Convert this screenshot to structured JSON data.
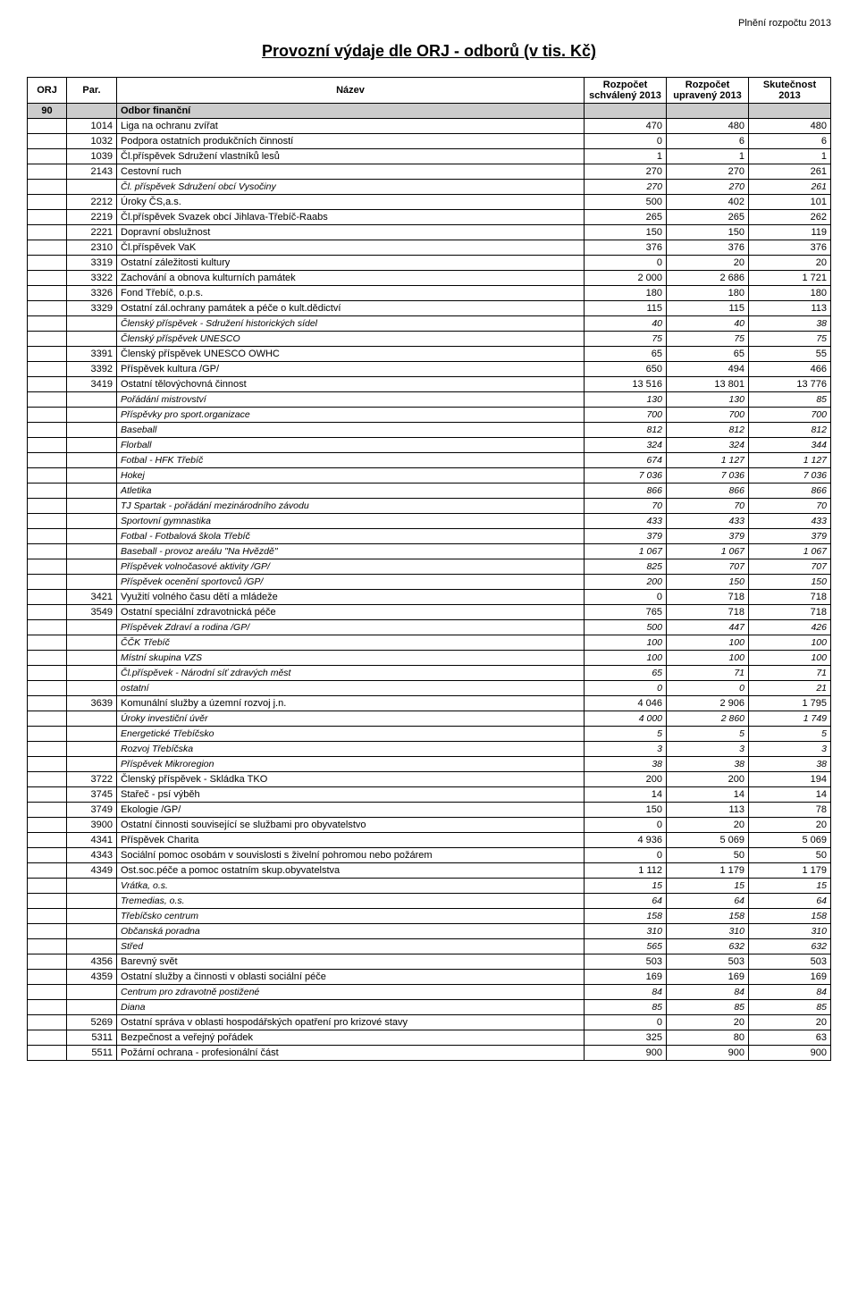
{
  "page_header": "Plnění rozpočtu 2013",
  "title": "Provozní výdaje dle ORJ - odborů (v tis. Kč)",
  "columns": {
    "orj": "ORJ",
    "par": "Par.",
    "name": "Název",
    "c1": "Rozpočet schválený 2013",
    "c2": "Rozpočet upravený 2013",
    "c3": "Skutečnost 2013"
  },
  "rows": [
    {
      "type": "section",
      "orj": "90",
      "name": "Odbor finanční"
    },
    {
      "par": "1014",
      "name": "Liga na ochranu zvířat",
      "v": [
        "470",
        "480",
        "480"
      ]
    },
    {
      "par": "1032",
      "name": "Podpora ostatních produkčních činností",
      "v": [
        "0",
        "6",
        "6"
      ]
    },
    {
      "par": "1039",
      "name": "Čl.příspěvek Sdružení vlastníků lesů",
      "v": [
        "1",
        "1",
        "1"
      ]
    },
    {
      "par": "2143",
      "name": "Cestovní ruch",
      "v": [
        "270",
        "270",
        "261"
      ]
    },
    {
      "type": "italic",
      "name": "Čl. příspěvek Sdružení obcí Vysočiny",
      "v": [
        "270",
        "270",
        "261"
      ]
    },
    {
      "par": "2212",
      "name": "Úroky ČS,a.s.",
      "v": [
        "500",
        "402",
        "101"
      ]
    },
    {
      "par": "2219",
      "name": "Čl.příspěvek Svazek obcí Jihlava-Třebíč-Raabs",
      "v": [
        "265",
        "265",
        "262"
      ]
    },
    {
      "par": "2221",
      "name": "Dopravní obslužnost",
      "v": [
        "150",
        "150",
        "119"
      ]
    },
    {
      "par": "2310",
      "name": "Čl.příspěvek VaK",
      "v": [
        "376",
        "376",
        "376"
      ]
    },
    {
      "par": "3319",
      "name": "Ostatní záležitosti kultury",
      "v": [
        "0",
        "20",
        "20"
      ]
    },
    {
      "par": "3322",
      "name": "Zachování a obnova kulturních památek",
      "v": [
        "2 000",
        "2 686",
        "1 721"
      ]
    },
    {
      "par": "3326",
      "name": "Fond Třebíč, o.p.s.",
      "v": [
        "180",
        "180",
        "180"
      ]
    },
    {
      "par": "3329",
      "name": "Ostatní zál.ochrany památek a péče o kult.dědictví",
      "v": [
        "115",
        "115",
        "113"
      ]
    },
    {
      "type": "italic",
      "name": "Členský příspěvek - Sdružení historických sídel",
      "v": [
        "40",
        "40",
        "38"
      ]
    },
    {
      "type": "italic",
      "name": "Členský příspěvek UNESCO",
      "v": [
        "75",
        "75",
        "75"
      ]
    },
    {
      "par": "3391",
      "name": "Členský příspěvek UNESCO OWHC",
      "v": [
        "65",
        "65",
        "55"
      ]
    },
    {
      "par": "3392",
      "name": "Příspěvek kultura /GP/",
      "v": [
        "650",
        "494",
        "466"
      ]
    },
    {
      "par": "3419",
      "name": "Ostatní tělovýchovná činnost",
      "v": [
        "13 516",
        "13 801",
        "13 776"
      ]
    },
    {
      "type": "italic",
      "name": "Pořádání mistrovství",
      "v": [
        "130",
        "130",
        "85"
      ]
    },
    {
      "type": "italic",
      "name": "Příspěvky pro sport.organizace",
      "v": [
        "700",
        "700",
        "700"
      ]
    },
    {
      "type": "italic",
      "name": "Baseball",
      "v": [
        "812",
        "812",
        "812"
      ]
    },
    {
      "type": "italic",
      "name": "Florball",
      "v": [
        "324",
        "324",
        "344"
      ]
    },
    {
      "type": "italic",
      "name": "Fotbal - HFK Třebíč",
      "v": [
        "674",
        "1 127",
        "1 127"
      ]
    },
    {
      "type": "italic",
      "name": "Hokej",
      "v": [
        "7 036",
        "7 036",
        "7 036"
      ]
    },
    {
      "type": "italic",
      "name": "Atletika",
      "v": [
        "866",
        "866",
        "866"
      ]
    },
    {
      "type": "italic",
      "name": "TJ Spartak - pořádání mezinárodního závodu",
      "v": [
        "70",
        "70",
        "70"
      ]
    },
    {
      "type": "italic",
      "name": "Sportovní gymnastika",
      "v": [
        "433",
        "433",
        "433"
      ]
    },
    {
      "type": "italic",
      "name": "Fotbal - Fotbalová škola Třebíč",
      "v": [
        "379",
        "379",
        "379"
      ]
    },
    {
      "type": "italic",
      "name": "Baseball - provoz areálu \"Na Hvězdě\"",
      "v": [
        "1 067",
        "1 067",
        "1 067"
      ]
    },
    {
      "type": "italic",
      "name": "Příspěvek volnočasové aktivity /GP/",
      "v": [
        "825",
        "707",
        "707"
      ]
    },
    {
      "type": "italic",
      "name": "Příspěvek ocenění sportovců /GP/",
      "v": [
        "200",
        "150",
        "150"
      ]
    },
    {
      "par": "3421",
      "name": "Využití volného času dětí a mládeže",
      "v": [
        "0",
        "718",
        "718"
      ]
    },
    {
      "par": "3549",
      "name": "Ostatní speciální zdravotnická péče",
      "v": [
        "765",
        "718",
        "718"
      ]
    },
    {
      "type": "italic",
      "name": "Příspěvek Zdraví a rodina /GP/",
      "v": [
        "500",
        "447",
        "426"
      ]
    },
    {
      "type": "italic",
      "name": "ČČK Třebíč",
      "v": [
        "100",
        "100",
        "100"
      ]
    },
    {
      "type": "italic",
      "name": "Místní skupina VZS",
      "v": [
        "100",
        "100",
        "100"
      ]
    },
    {
      "type": "italic",
      "name": "Čl.příspěvek - Národní síť zdravých měst",
      "v": [
        "65",
        "71",
        "71"
      ]
    },
    {
      "type": "italic",
      "name": "ostatní",
      "v": [
        "0",
        "0",
        "21"
      ]
    },
    {
      "par": "3639",
      "name": "Komunální služby a územní rozvoj j.n.",
      "v": [
        "4 046",
        "2 906",
        "1 795"
      ]
    },
    {
      "type": "italic",
      "name": "Úroky investiční úvěr",
      "v": [
        "4 000",
        "2 860",
        "1 749"
      ]
    },
    {
      "type": "italic",
      "name": "Energetické Třebíčsko",
      "v": [
        "5",
        "5",
        "5"
      ]
    },
    {
      "type": "italic",
      "name": "Rozvoj Třebíčska",
      "v": [
        "3",
        "3",
        "3"
      ]
    },
    {
      "type": "italic",
      "name": "Příspěvek Mikroregion",
      "v": [
        "38",
        "38",
        "38"
      ]
    },
    {
      "par": "3722",
      "name": "Členský příspěvek - Skládka TKO",
      "v": [
        "200",
        "200",
        "194"
      ]
    },
    {
      "par": "3745",
      "name": "Stařeč - psí výběh",
      "v": [
        "14",
        "14",
        "14"
      ]
    },
    {
      "par": "3749",
      "name": "Ekologie /GP/",
      "v": [
        "150",
        "113",
        "78"
      ]
    },
    {
      "par": "3900",
      "name": "Ostatní činnosti související se službami pro obyvatelstvo",
      "v": [
        "0",
        "20",
        "20"
      ]
    },
    {
      "par": "4341",
      "name": "Příspěvek Charita",
      "v": [
        "4 936",
        "5 069",
        "5 069"
      ]
    },
    {
      "par": "4343",
      "name": "Sociální pomoc osobám v souvislosti s živelní pohromou nebo požárem",
      "v": [
        "0",
        "50",
        "50"
      ]
    },
    {
      "par": "4349",
      "name": "Ost.soc.péče a pomoc ostatním skup.obyvatelstva",
      "v": [
        "1 112",
        "1 179",
        "1 179"
      ]
    },
    {
      "type": "italic",
      "name": "Vrátka, o.s.",
      "v": [
        "15",
        "15",
        "15"
      ]
    },
    {
      "type": "italic",
      "name": "Tremedias, o.s.",
      "v": [
        "64",
        "64",
        "64"
      ]
    },
    {
      "type": "italic",
      "name": "Třebíčsko centrum",
      "v": [
        "158",
        "158",
        "158"
      ]
    },
    {
      "type": "italic",
      "name": "Občanská poradna",
      "v": [
        "310",
        "310",
        "310"
      ]
    },
    {
      "type": "italic",
      "name": "Střed",
      "v": [
        "565",
        "632",
        "632"
      ]
    },
    {
      "par": "4356",
      "name": "Barevný svět",
      "v": [
        "503",
        "503",
        "503"
      ]
    },
    {
      "par": "4359",
      "name": "Ostatní služby a činnosti v oblasti sociální péče",
      "v": [
        "169",
        "169",
        "169"
      ]
    },
    {
      "type": "italic",
      "name": "Centrum pro zdravotně postižené",
      "v": [
        "84",
        "84",
        "84"
      ]
    },
    {
      "type": "italic",
      "name": "Diana",
      "v": [
        "85",
        "85",
        "85"
      ]
    },
    {
      "par": "5269",
      "name": "Ostatní správa v oblasti hospodářských opatření pro krizové stavy",
      "v": [
        "0",
        "20",
        "20"
      ]
    },
    {
      "par": "5311",
      "name": "Bezpečnost a veřejný pořádek",
      "v": [
        "325",
        "80",
        "63"
      ]
    },
    {
      "par": "5511",
      "name": "Požární ochrana - profesionální část",
      "v": [
        "900",
        "900",
        "900"
      ]
    }
  ]
}
